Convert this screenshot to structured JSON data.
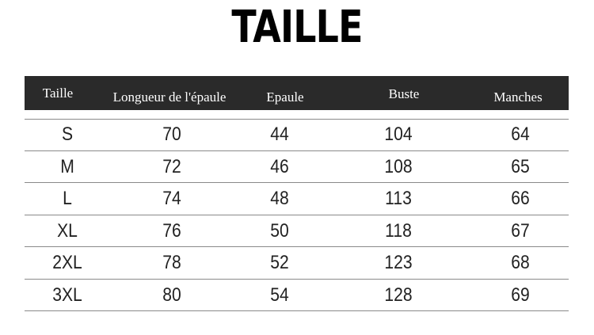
{
  "title": "TAILLE",
  "headers": [
    "Taille",
    "Longueur de l'épaule",
    "Epaule",
    "Buste",
    "Manches"
  ],
  "rows": [
    [
      "S",
      "70",
      "44",
      "104",
      "64"
    ],
    [
      "M",
      "72",
      "46",
      "108",
      "65"
    ],
    [
      "L",
      "74",
      "48",
      "113",
      "66"
    ],
    [
      "XL",
      "76",
      "50",
      "118",
      "67"
    ],
    [
      "2XL",
      "78",
      "52",
      "123",
      "68"
    ],
    [
      "3XL",
      "80",
      "54",
      "128",
      "69"
    ]
  ]
}
